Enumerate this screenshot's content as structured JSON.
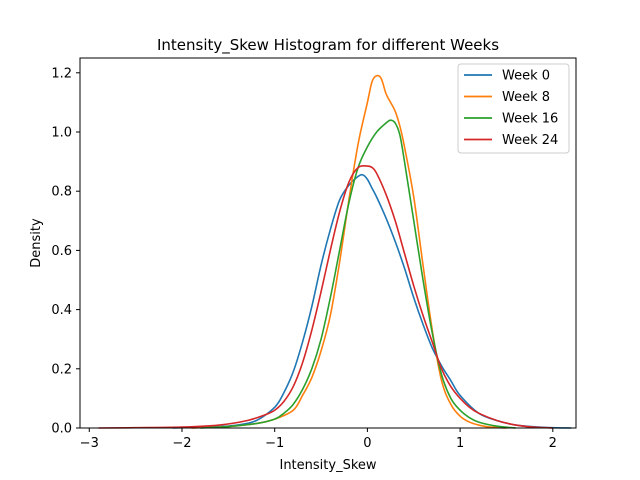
{
  "chart_data": {
    "type": "line",
    "title": "Intensity_Skew Histogram for different Weeks",
    "xlabel": "Intensity_Skew",
    "ylabel": "Density",
    "xlim": [
      -3.1,
      2.25
    ],
    "ylim": [
      0,
      1.25
    ],
    "xticks": [
      -3,
      -2,
      -1,
      0,
      1,
      2
    ],
    "xtick_labels": [
      "−3",
      "−2",
      "−1",
      "0",
      "1",
      "2"
    ],
    "yticks": [
      0.0,
      0.2,
      0.4,
      0.6,
      0.8,
      1.0,
      1.2
    ],
    "ytick_labels": [
      "0.0",
      "0.2",
      "0.4",
      "0.6",
      "0.8",
      "1.0",
      "1.2"
    ],
    "grid": false,
    "legend": {
      "placement": "top-right"
    },
    "series": [
      {
        "name": "Week 0",
        "color": "#1f77b4",
        "x": [
          -2.1,
          -1.6,
          -1.4,
          -1.2,
          -1.0,
          -0.9,
          -0.8,
          -0.7,
          -0.6,
          -0.5,
          -0.4,
          -0.3,
          -0.2,
          -0.1,
          -0.05,
          0.0,
          0.05,
          0.1,
          0.2,
          0.3,
          0.4,
          0.5,
          0.6,
          0.7,
          0.8,
          0.9,
          1.0,
          1.2,
          1.4,
          1.6,
          1.8,
          2.0,
          2.2
        ],
        "y": [
          0.0,
          0.005,
          0.01,
          0.025,
          0.07,
          0.12,
          0.19,
          0.29,
          0.41,
          0.55,
          0.67,
          0.77,
          0.82,
          0.85,
          0.855,
          0.84,
          0.81,
          0.78,
          0.71,
          0.63,
          0.54,
          0.44,
          0.35,
          0.27,
          0.21,
          0.16,
          0.11,
          0.05,
          0.025,
          0.01,
          0.004,
          0.001,
          0.0
        ]
      },
      {
        "name": "Week 8",
        "color": "#ff7f0e",
        "x": [
          -1.9,
          -1.5,
          -1.2,
          -1.0,
          -0.8,
          -0.7,
          -0.6,
          -0.5,
          -0.4,
          -0.3,
          -0.2,
          -0.1,
          0.0,
          0.05,
          0.1,
          0.15,
          0.2,
          0.25,
          0.3,
          0.35,
          0.4,
          0.5,
          0.6,
          0.7,
          0.8,
          0.9,
          1.0,
          1.1,
          1.2,
          1.3,
          1.5
        ],
        "y": [
          0.0,
          0.005,
          0.015,
          0.03,
          0.06,
          0.11,
          0.17,
          0.26,
          0.38,
          0.56,
          0.77,
          0.96,
          1.1,
          1.17,
          1.19,
          1.18,
          1.13,
          1.1,
          1.07,
          1.02,
          0.95,
          0.78,
          0.55,
          0.33,
          0.16,
          0.08,
          0.04,
          0.02,
          0.01,
          0.004,
          0.0
        ]
      },
      {
        "name": "Week 16",
        "color": "#2ca02c",
        "x": [
          -1.8,
          -1.5,
          -1.2,
          -1.0,
          -0.9,
          -0.8,
          -0.7,
          -0.6,
          -0.5,
          -0.4,
          -0.3,
          -0.2,
          -0.1,
          0.0,
          0.1,
          0.2,
          0.25,
          0.3,
          0.35,
          0.4,
          0.5,
          0.6,
          0.7,
          0.8,
          0.9,
          1.0,
          1.1,
          1.2,
          1.4,
          1.6
        ],
        "y": [
          0.0,
          0.005,
          0.015,
          0.03,
          0.05,
          0.08,
          0.13,
          0.2,
          0.3,
          0.44,
          0.6,
          0.76,
          0.88,
          0.95,
          1.0,
          1.03,
          1.04,
          1.03,
          0.99,
          0.9,
          0.7,
          0.5,
          0.32,
          0.18,
          0.1,
          0.06,
          0.035,
          0.02,
          0.006,
          0.0
        ]
      },
      {
        "name": "Week 24",
        "color": "#d62728",
        "x": [
          -2.9,
          -2.5,
          -2.0,
          -1.6,
          -1.3,
          -1.1,
          -1.0,
          -0.9,
          -0.8,
          -0.7,
          -0.6,
          -0.5,
          -0.4,
          -0.3,
          -0.2,
          -0.1,
          0.0,
          0.05,
          0.1,
          0.2,
          0.3,
          0.4,
          0.5,
          0.6,
          0.7,
          0.8,
          0.9,
          1.0,
          1.1,
          1.2,
          1.4,
          1.6,
          1.8,
          2.0
        ],
        "y": [
          0.0,
          0.001,
          0.003,
          0.01,
          0.025,
          0.045,
          0.06,
          0.09,
          0.14,
          0.22,
          0.33,
          0.46,
          0.6,
          0.73,
          0.83,
          0.88,
          0.885,
          0.88,
          0.86,
          0.79,
          0.7,
          0.59,
          0.48,
          0.38,
          0.29,
          0.2,
          0.14,
          0.1,
          0.07,
          0.05,
          0.025,
          0.01,
          0.003,
          0.0
        ]
      }
    ]
  }
}
